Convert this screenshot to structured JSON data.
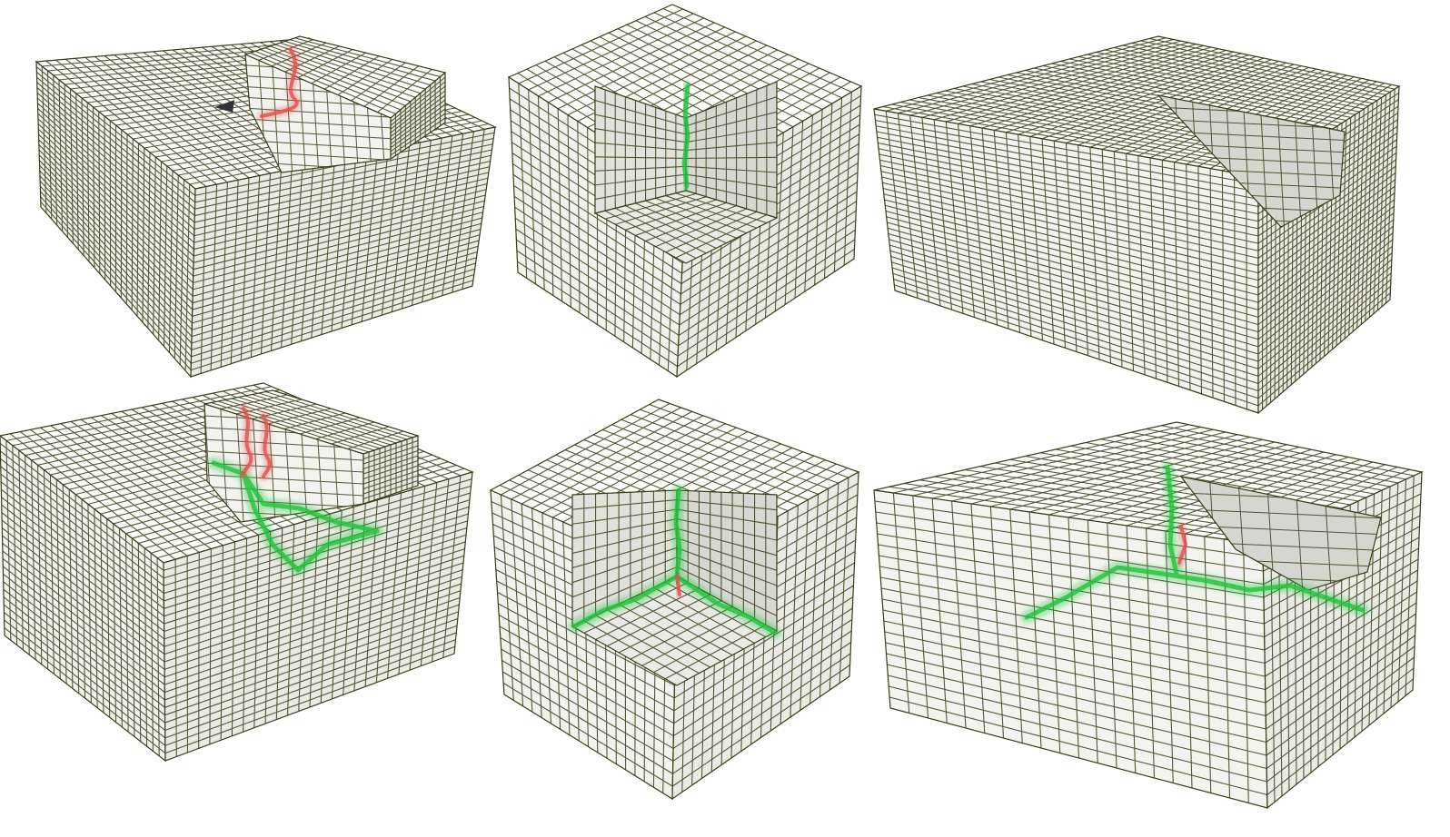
{
  "figure": {
    "panels": [
      {
        "id": "a",
        "shape": "box with raised curved shelf",
        "singular_curve": "red",
        "has_green_edges": false,
        "grid": 28
      },
      {
        "id": "b",
        "shape": "cube with corner cavity",
        "singular_curve": "green vertical",
        "has_green_edges": false,
        "grid": 18
      },
      {
        "id": "c",
        "shape": "box with sloped step",
        "singular_curve": "none",
        "has_green_edges": false,
        "grid": 32
      },
      {
        "id": "d",
        "shape": "box with raised curved shelf",
        "singular_curve": "red",
        "has_green_edges": true,
        "grid": 26
      },
      {
        "id": "e",
        "shape": "cube with corner cavity",
        "singular_curve": "red",
        "has_green_edges": true,
        "grid": 18
      },
      {
        "id": "f",
        "shape": "box with sloped step",
        "singular_curve": "red",
        "has_green_edges": true,
        "grid": 20
      }
    ]
  },
  "colors": {
    "cell_fill": "#fbfbf8",
    "cell_shade": "#e4e4dc",
    "grid_line": "#3a3d16",
    "singular_green": "#22c23a",
    "singular_red": "#e0504e",
    "background": "#ffffff"
  }
}
